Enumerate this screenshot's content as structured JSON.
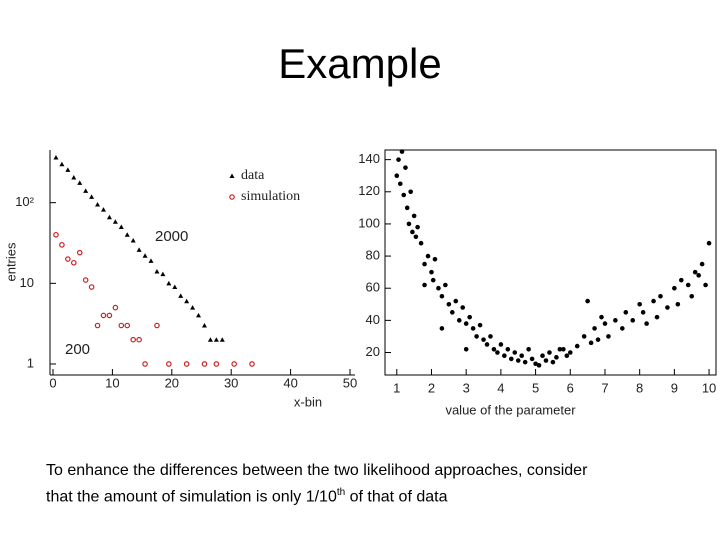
{
  "title": "Example",
  "caption": {
    "line1": "To enhance the differences between the two likelihood approaches, consider",
    "line2_before": "that the amount of simulation is only 1/10",
    "line2_sup": "th",
    "line2_after": " of that of data"
  },
  "chart_data": [
    {
      "type": "scatter",
      "log_y": true,
      "xlabel": "x-bin",
      "ylabel": "entries",
      "xlim": [
        0,
        50
      ],
      "ylim": [
        0.73,
        450
      ],
      "xticks": [
        0,
        10,
        20,
        30,
        40,
        50
      ],
      "yticks": [
        1,
        10,
        {
          "value": 100,
          "label": "10²"
        }
      ],
      "series": [
        {
          "name": "data",
          "color": "#000000",
          "marker": "triangle",
          "x": [
            0.5,
            1.5,
            2.5,
            3.5,
            4.5,
            5.5,
            6.5,
            7.5,
            8.5,
            9.5,
            10.5,
            11.5,
            12.5,
            13.5,
            14.5,
            15.5,
            16.5,
            17.5,
            18.5,
            19.5,
            20.5,
            21.5,
            22.5,
            23.5,
            24.5,
            25.5,
            26.5,
            27.5,
            28.5
          ],
          "values": [
            363,
            300,
            255,
            205,
            176,
            140,
            118,
            95,
            82,
            66,
            58,
            50,
            40,
            34,
            26,
            22,
            19,
            14,
            13,
            10,
            9,
            7,
            6,
            5,
            4,
            3,
            2,
            2,
            2
          ]
        },
        {
          "name": "simulation",
          "color": "#cc2222",
          "marker": "circle",
          "x": [
            0.5,
            1.5,
            2.5,
            3.5,
            4.5,
            5.5,
            6.5,
            7.5,
            8.5,
            9.5,
            10.5,
            11.5,
            12.5,
            13.5,
            14.5,
            15.5,
            17.5,
            19.5,
            22.5,
            25.5,
            27.5,
            30.5,
            33.5
          ],
          "values": [
            40,
            30,
            20,
            18,
            24,
            11,
            9,
            3,
            4,
            4,
            5,
            3,
            3,
            2,
            2,
            1,
            3,
            1,
            1,
            1,
            1,
            1,
            1
          ]
        }
      ],
      "annotations": [
        "2000",
        "200"
      ]
    },
    {
      "type": "scatter",
      "xlabel": "value of the parameter",
      "xlim": [
        0.66,
        10.2
      ],
      "ylim": [
        6,
        146
      ],
      "xticks": [
        1,
        2,
        3,
        4,
        5,
        6,
        7,
        8,
        9,
        10
      ],
      "yticks": [
        20,
        40,
        60,
        80,
        100,
        120,
        140
      ],
      "series": [
        {
          "color": "#000000",
          "marker": "dot",
          "x": [
            1.0,
            1.05,
            1.1,
            1.15,
            1.2,
            1.25,
            1.3,
            1.35,
            1.4,
            1.45,
            1.5,
            1.55,
            1.6,
            1.7,
            1.8,
            1.9,
            2.0,
            2.05,
            2.1,
            2.2,
            2.3,
            2.4,
            2.5,
            2.6,
            2.7,
            2.8,
            2.9,
            3.0,
            3.1,
            3.2,
            3.3,
            3.4,
            3.5,
            3.6,
            3.7,
            3.8,
            3.9,
            4.0,
            4.1,
            4.2,
            4.3,
            4.4,
            4.5,
            4.6,
            4.7,
            4.8,
            4.9,
            5.0,
            5.1,
            5.2,
            5.3,
            5.4,
            5.5,
            5.6,
            5.8,
            5.9,
            6.0,
            6.2,
            6.4,
            6.6,
            6.7,
            6.8,
            6.9,
            7.0,
            7.1,
            7.3,
            7.5,
            7.6,
            7.8,
            8.0,
            8.1,
            8.2,
            8.4,
            8.5,
            8.6,
            8.8,
            9.0,
            9.1,
            9.2,
            9.4,
            9.5,
            9.6,
            9.7,
            9.8,
            9.9,
            10.0,
            6.5,
            5.7,
            3.0,
            2.3,
            1.8
          ],
          "values": [
            130,
            140,
            125,
            145,
            118,
            135,
            110,
            100,
            120,
            95,
            105,
            92,
            98,
            88,
            75,
            80,
            70,
            65,
            78,
            60,
            55,
            62,
            50,
            45,
            52,
            40,
            48,
            38,
            42,
            35,
            30,
            37,
            28,
            25,
            30,
            22,
            20,
            25,
            18,
            22,
            16,
            20,
            15,
            18,
            14,
            22,
            16,
            13,
            12,
            18,
            15,
            20,
            14,
            17,
            22,
            18,
            20,
            24,
            30,
            26,
            35,
            28,
            42,
            38,
            30,
            40,
            35,
            45,
            40,
            50,
            45,
            38,
            52,
            42,
            55,
            48,
            60,
            50,
            65,
            62,
            55,
            70,
            68,
            75,
            62,
            88,
            52,
            22,
            22,
            35,
            62
          ]
        }
      ]
    }
  ]
}
